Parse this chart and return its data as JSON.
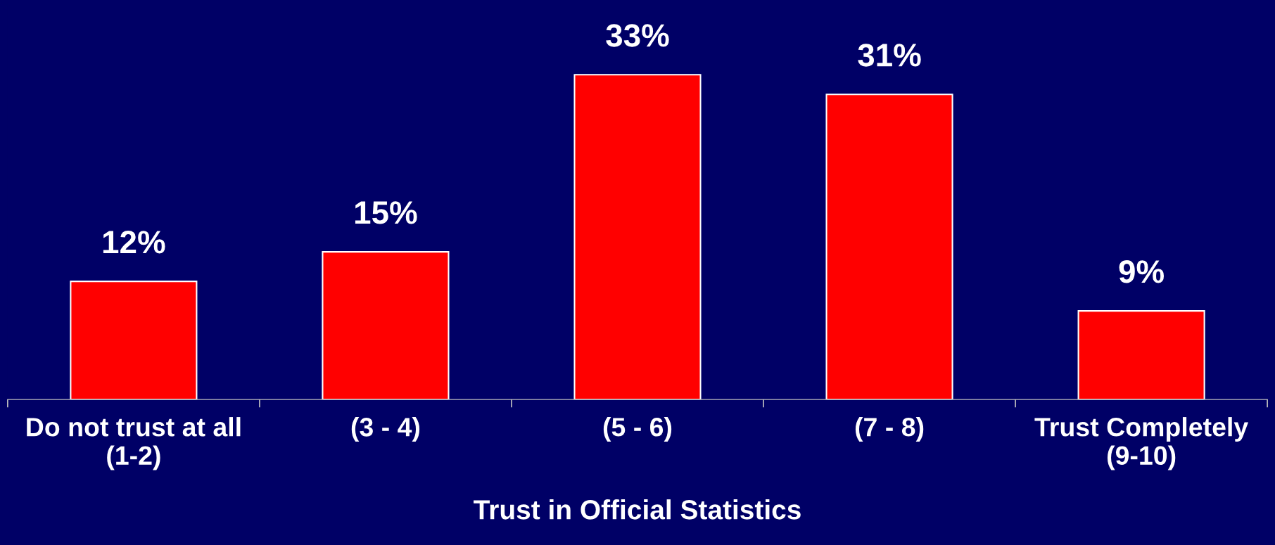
{
  "chart_data": {
    "type": "bar",
    "xlabel": "Trust in Official Statistics",
    "categories": [
      "Do not trust at all\n(1-2)",
      "(3 - 4)",
      "(5 - 6)",
      "(7 - 8)",
      "Trust Completely\n(9-10)"
    ],
    "values": [
      12,
      15,
      33,
      31,
      9
    ],
    "color": "#ff0000",
    "value_labels": [
      "12%",
      "15%",
      "33%",
      "31%",
      "9%"
    ],
    "grid": false,
    "legend": false
  }
}
